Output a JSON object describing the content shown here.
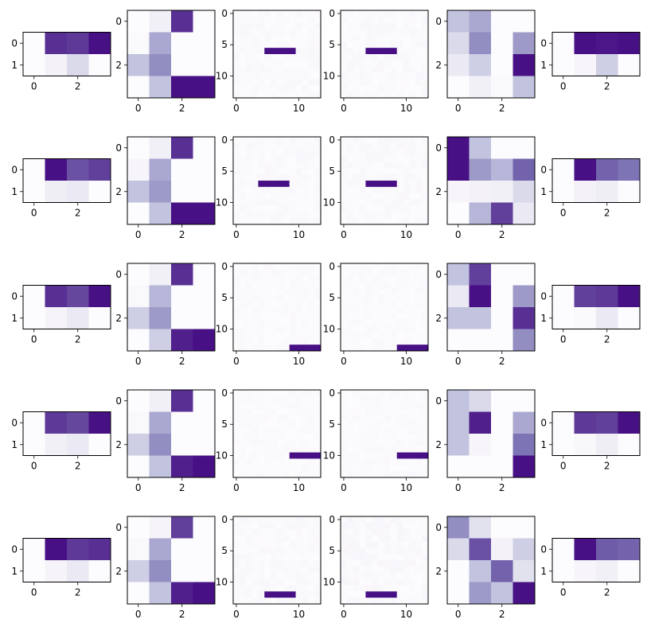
{
  "colormap": {
    "name": "Purples",
    "stops": [
      "#fcfbfd",
      "#efedf5",
      "#dadaeb",
      "#bcbddc",
      "#9e9ac8",
      "#807dba",
      "#6a51a3",
      "#54278f",
      "#3f007d"
    ]
  },
  "chart_data": [
    {
      "type": "heatmap",
      "row": 0,
      "col": 0,
      "rows": 2,
      "cols": 4,
      "xticks": [
        0,
        2
      ],
      "yticks": [
        0,
        1
      ],
      "values": [
        [
          0.0,
          0.85,
          0.82,
          0.95
        ],
        [
          0.0,
          0.08,
          0.25,
          0.0
        ]
      ]
    },
    {
      "type": "heatmap",
      "row": 0,
      "col": 1,
      "rows": 4,
      "cols": 4,
      "xticks": [
        0,
        2
      ],
      "yticks": [
        0,
        2
      ],
      "values": [
        [
          0.0,
          0.1,
          0.85,
          0.0
        ],
        [
          0.02,
          0.45,
          0.0,
          0.0
        ],
        [
          0.35,
          0.55,
          0.0,
          0.0
        ],
        [
          0.0,
          0.35,
          0.95,
          0.95
        ]
      ]
    },
    {
      "type": "heatmap",
      "row": 0,
      "col": 2,
      "rows": 14,
      "cols": 14,
      "xticks": [
        0,
        10
      ],
      "yticks": [
        0,
        5,
        10
      ],
      "noise": 0.04,
      "seed": 11,
      "segment": {
        "row": 6,
        "cols": [
          5,
          6,
          7,
          8,
          9
        ],
        "value": 0.95
      }
    },
    {
      "type": "heatmap",
      "row": 0,
      "col": 3,
      "rows": 14,
      "cols": 14,
      "xticks": [
        0,
        10
      ],
      "yticks": [
        0,
        5,
        10
      ],
      "noise": 0.04,
      "seed": 12,
      "segment": {
        "row": 6,
        "cols": [
          4,
          5,
          6,
          7,
          8
        ],
        "value": 0.95
      }
    },
    {
      "type": "heatmap",
      "row": 0,
      "col": 4,
      "rows": 4,
      "cols": 4,
      "xticks": [
        0,
        2
      ],
      "yticks": [
        0,
        2
      ],
      "values": [
        [
          0.35,
          0.45,
          0.0,
          0.0
        ],
        [
          0.25,
          0.55,
          0.0,
          0.5
        ],
        [
          0.15,
          0.3,
          0.0,
          0.95
        ],
        [
          0.0,
          0.1,
          0.02,
          0.35
        ]
      ]
    },
    {
      "type": "heatmap",
      "row": 0,
      "col": 5,
      "rows": 2,
      "cols": 4,
      "xticks": [
        0,
        2
      ],
      "yticks": [
        0,
        1
      ],
      "values": [
        [
          0.0,
          0.95,
          0.93,
          0.95
        ],
        [
          0.0,
          0.05,
          0.3,
          0.0
        ]
      ]
    },
    {
      "type": "heatmap",
      "row": 1,
      "col": 0,
      "rows": 2,
      "cols": 4,
      "xticks": [
        0,
        2
      ],
      "yticks": [
        0,
        1
      ],
      "values": [
        [
          0.0,
          0.95,
          0.75,
          0.8
        ],
        [
          0.0,
          0.12,
          0.15,
          0.0
        ]
      ]
    },
    {
      "type": "heatmap",
      "row": 1,
      "col": 1,
      "rows": 4,
      "cols": 4,
      "xticks": [
        0,
        2
      ],
      "yticks": [
        0,
        2
      ],
      "values": [
        [
          0.0,
          0.1,
          0.85,
          0.0
        ],
        [
          0.05,
          0.45,
          0.0,
          0.0
        ],
        [
          0.35,
          0.5,
          0.0,
          0.0
        ],
        [
          0.0,
          0.35,
          0.95,
          0.95
        ]
      ]
    },
    {
      "type": "heatmap",
      "row": 1,
      "col": 2,
      "rows": 14,
      "cols": 14,
      "xticks": [
        0,
        10
      ],
      "yticks": [
        0,
        5,
        10
      ],
      "noise": 0.04,
      "seed": 21,
      "segment": {
        "row": 7,
        "cols": [
          4,
          5,
          6,
          7,
          8
        ],
        "value": 0.95
      }
    },
    {
      "type": "heatmap",
      "row": 1,
      "col": 3,
      "rows": 14,
      "cols": 14,
      "xticks": [
        0,
        10
      ],
      "yticks": [
        0,
        5,
        10
      ],
      "noise": 0.04,
      "seed": 22,
      "segment": {
        "row": 7,
        "cols": [
          4,
          5,
          6,
          7,
          8
        ],
        "value": 0.95
      }
    },
    {
      "type": "heatmap",
      "row": 1,
      "col": 4,
      "rows": 4,
      "cols": 4,
      "xticks": [
        0,
        2
      ],
      "yticks": [
        0,
        2
      ],
      "values": [
        [
          0.95,
          0.35,
          0.0,
          0.0
        ],
        [
          0.95,
          0.5,
          0.4,
          0.7
        ],
        [
          0.05,
          0.08,
          0.1,
          0.25
        ],
        [
          0.0,
          0.4,
          0.8,
          0.15
        ]
      ]
    },
    {
      "type": "heatmap",
      "row": 1,
      "col": 5,
      "rows": 2,
      "cols": 4,
      "xticks": [
        0,
        2
      ],
      "yticks": [
        0,
        1
      ],
      "values": [
        [
          0.0,
          0.95,
          0.7,
          0.65
        ],
        [
          0.0,
          0.08,
          0.12,
          0.0
        ]
      ]
    },
    {
      "type": "heatmap",
      "row": 2,
      "col": 0,
      "rows": 2,
      "cols": 4,
      "xticks": [
        0,
        2
      ],
      "yticks": [
        0,
        1
      ],
      "values": [
        [
          0.0,
          0.85,
          0.78,
          0.95
        ],
        [
          0.0,
          0.06,
          0.15,
          0.0
        ]
      ]
    },
    {
      "type": "heatmap",
      "row": 2,
      "col": 1,
      "rows": 4,
      "cols": 4,
      "xticks": [
        0,
        2
      ],
      "yticks": [
        0,
        2
      ],
      "values": [
        [
          0.0,
          0.1,
          0.85,
          0.0
        ],
        [
          0.03,
          0.4,
          0.0,
          0.0
        ],
        [
          0.3,
          0.5,
          0.0,
          0.0
        ],
        [
          0.0,
          0.3,
          0.9,
          0.95
        ]
      ]
    },
    {
      "type": "heatmap",
      "row": 2,
      "col": 2,
      "rows": 14,
      "cols": 14,
      "xticks": [
        0,
        10
      ],
      "yticks": [
        0,
        5,
        10
      ],
      "noise": 0.03,
      "seed": 31,
      "segment": {
        "row": 13,
        "cols": [
          9,
          10,
          11,
          12,
          13
        ],
        "value": 0.95
      }
    },
    {
      "type": "heatmap",
      "row": 2,
      "col": 3,
      "rows": 14,
      "cols": 14,
      "xticks": [
        0,
        10
      ],
      "yticks": [
        0,
        5,
        10
      ],
      "noise": 0.03,
      "seed": 32,
      "segment": {
        "row": 13,
        "cols": [
          9,
          10,
          11,
          12,
          13
        ],
        "value": 0.95
      }
    },
    {
      "type": "heatmap",
      "row": 2,
      "col": 4,
      "rows": 4,
      "cols": 4,
      "xticks": [
        0,
        2
      ],
      "yticks": [
        0,
        2
      ],
      "values": [
        [
          0.35,
          0.8,
          0.0,
          0.0
        ],
        [
          0.15,
          0.95,
          0.0,
          0.5
        ],
        [
          0.35,
          0.35,
          0.0,
          0.85
        ],
        [
          0.0,
          0.0,
          0.0,
          0.55
        ]
      ]
    },
    {
      "type": "heatmap",
      "row": 2,
      "col": 5,
      "rows": 2,
      "cols": 4,
      "xticks": [
        0,
        2
      ],
      "yticks": [
        0,
        1
      ],
      "values": [
        [
          0.0,
          0.8,
          0.82,
          0.95
        ],
        [
          0.0,
          0.02,
          0.15,
          0.0
        ]
      ]
    },
    {
      "type": "heatmap",
      "row": 3,
      "col": 0,
      "rows": 2,
      "cols": 4,
      "xticks": [
        0,
        2
      ],
      "yticks": [
        0,
        1
      ],
      "values": [
        [
          0.0,
          0.82,
          0.78,
          0.95
        ],
        [
          0.0,
          0.1,
          0.15,
          0.0
        ]
      ]
    },
    {
      "type": "heatmap",
      "row": 3,
      "col": 1,
      "rows": 4,
      "cols": 4,
      "xticks": [
        0,
        2
      ],
      "yticks": [
        0,
        2
      ],
      "values": [
        [
          0.0,
          0.1,
          0.85,
          0.0
        ],
        [
          0.03,
          0.45,
          0.0,
          0.0
        ],
        [
          0.3,
          0.55,
          0.0,
          0.0
        ],
        [
          0.0,
          0.35,
          0.9,
          0.95
        ]
      ]
    },
    {
      "type": "heatmap",
      "row": 3,
      "col": 2,
      "rows": 14,
      "cols": 14,
      "xticks": [
        0,
        10
      ],
      "yticks": [
        0,
        5,
        10
      ],
      "noise": 0.03,
      "seed": 41,
      "segment": {
        "row": 10,
        "cols": [
          9,
          10,
          11,
          12,
          13
        ],
        "value": 0.95
      }
    },
    {
      "type": "heatmap",
      "row": 3,
      "col": 3,
      "rows": 14,
      "cols": 14,
      "xticks": [
        0,
        10
      ],
      "yticks": [
        0,
        5,
        10
      ],
      "noise": 0.03,
      "seed": 42,
      "segment": {
        "row": 10,
        "cols": [
          9,
          10,
          11,
          12,
          13
        ],
        "value": 0.95
      }
    },
    {
      "type": "heatmap",
      "row": 3,
      "col": 4,
      "rows": 4,
      "cols": 4,
      "xticks": [
        0,
        2
      ],
      "yticks": [
        0,
        2
      ],
      "values": [
        [
          0.35,
          0.25,
          0.0,
          0.0
        ],
        [
          0.35,
          0.9,
          0.0,
          0.45
        ],
        [
          0.35,
          0.05,
          0.0,
          0.65
        ],
        [
          0.0,
          0.0,
          0.0,
          0.95
        ]
      ]
    },
    {
      "type": "heatmap",
      "row": 3,
      "col": 5,
      "rows": 2,
      "cols": 4,
      "xticks": [
        0,
        2
      ],
      "yticks": [
        0,
        1
      ],
      "values": [
        [
          0.0,
          0.82,
          0.8,
          0.95
        ],
        [
          0.0,
          0.04,
          0.12,
          0.0
        ]
      ]
    },
    {
      "type": "heatmap",
      "row": 4,
      "col": 0,
      "rows": 2,
      "cols": 4,
      "xticks": [
        0,
        2
      ],
      "yticks": [
        0,
        1
      ],
      "values": [
        [
          0.0,
          0.95,
          0.82,
          0.85
        ],
        [
          0.0,
          0.06,
          0.15,
          0.0
        ]
      ]
    },
    {
      "type": "heatmap",
      "row": 4,
      "col": 1,
      "rows": 4,
      "cols": 4,
      "xticks": [
        0,
        2
      ],
      "yticks": [
        0,
        2
      ],
      "values": [
        [
          0.0,
          0.06,
          0.8,
          0.0
        ],
        [
          0.03,
          0.45,
          0.0,
          0.0
        ],
        [
          0.3,
          0.55,
          0.0,
          0.0
        ],
        [
          0.0,
          0.35,
          0.9,
          0.95
        ]
      ]
    },
    {
      "type": "heatmap",
      "row": 4,
      "col": 2,
      "rows": 14,
      "cols": 14,
      "xticks": [
        0,
        10
      ],
      "yticks": [
        0,
        5,
        10
      ],
      "noise": 0.04,
      "seed": 51,
      "segment": {
        "row": 12,
        "cols": [
          5,
          6,
          7,
          8,
          9
        ],
        "value": 0.95
      }
    },
    {
      "type": "heatmap",
      "row": 4,
      "col": 3,
      "rows": 14,
      "cols": 14,
      "xticks": [
        0,
        10
      ],
      "yticks": [
        0,
        5,
        10
      ],
      "noise": 0.05,
      "seed": 52,
      "segment": {
        "row": 12,
        "cols": [
          4,
          5,
          6,
          7,
          8
        ],
        "value": 0.95
      }
    },
    {
      "type": "heatmap",
      "row": 4,
      "col": 4,
      "rows": 4,
      "cols": 4,
      "xticks": [
        0,
        2
      ],
      "yticks": [
        0,
        2
      ],
      "values": [
        [
          0.55,
          0.2,
          0.0,
          0.0
        ],
        [
          0.25,
          0.75,
          0.08,
          0.3
        ],
        [
          0.0,
          0.35,
          0.7,
          0.2
        ],
        [
          0.0,
          0.5,
          0.35,
          0.95
        ]
      ]
    },
    {
      "type": "heatmap",
      "row": 4,
      "col": 5,
      "rows": 2,
      "cols": 4,
      "xticks": [
        0,
        2
      ],
      "yticks": [
        0,
        1
      ],
      "values": [
        [
          0.0,
          0.95,
          0.72,
          0.7
        ],
        [
          0.0,
          0.05,
          0.1,
          0.0
        ]
      ]
    }
  ]
}
